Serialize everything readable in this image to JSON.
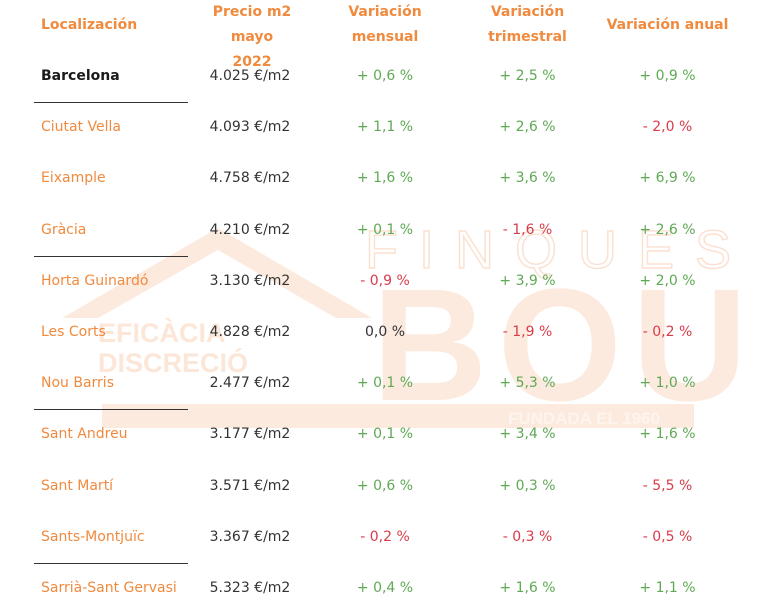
{
  "watermark": {
    "brand_top": "FINQUES",
    "brand_main": "BOU",
    "tagline_1": "EFICÀCIA",
    "tagline_2": "DISCRECIÓ",
    "founded": "FUNDADA EL 1960"
  },
  "table": {
    "headers": {
      "location": "Localización",
      "price_line1": "Precio m2 mayo",
      "price_line2": "2022",
      "monthly_line1": "Variación",
      "monthly_line2": "mensual",
      "quarterly_line1": "Variación",
      "quarterly_line2": "trimestral",
      "annual": "Variación anual"
    },
    "rows": [
      {
        "location": "Barcelona",
        "price": "4.025 €/m2",
        "monthly": "+ 0,6 %",
        "quarterly": "+ 2,5 %",
        "annual": "+ 0,9 %"
      },
      {
        "location": "Ciutat Vella",
        "price": "4.093 €/m2",
        "monthly": "+ 1,1 %",
        "quarterly": "+ 2,6 %",
        "annual": "- 2,0 %"
      },
      {
        "location": "Eixample",
        "price": "4.758 €/m2",
        "monthly": "+ 1,6 %",
        "quarterly": "+ 3,6 %",
        "annual": "+ 6,9 %"
      },
      {
        "location": "Gràcia",
        "price": "4.210 €/m2",
        "monthly": "+ 0,1 %",
        "quarterly": "- 1,6 %",
        "annual": "+ 2,6 %"
      },
      {
        "location": "Horta Guinardó",
        "price": "3.130 €/m2",
        "monthly": "- 0,9 %",
        "quarterly": "+ 3,9 %",
        "annual": "+ 2,0 %"
      },
      {
        "location": "Les Corts",
        "price": "4.828 €/m2",
        "monthly": "0,0 %",
        "quarterly": "- 1,9 %",
        "annual": "- 0,2 %"
      },
      {
        "location": "Nou Barris",
        "price": "2.477 €/m2",
        "monthly": "+ 0,1 %",
        "quarterly": "+ 5,3 %",
        "annual": "+ 1,0 %"
      },
      {
        "location": "Sant Andreu",
        "price": "3.177 €/m2",
        "monthly": "+ 0,1 %",
        "quarterly": "+ 3,4 %",
        "annual": "+ 1,6 %"
      },
      {
        "location": "Sant Martí",
        "price": "3.571 €/m2",
        "monthly": "+ 0,6 %",
        "quarterly": "+ 0,3 %",
        "annual": "- 5,5 %"
      },
      {
        "location": "Sants-Montjuïc",
        "price": "3.367 €/m2",
        "monthly": "- 0,2 %",
        "quarterly": "- 0,3 %",
        "annual": "- 0,5 %"
      },
      {
        "location": "Sarrià-Sant Gervasi",
        "price": "5.323 €/m2",
        "monthly": "+ 0,4 %",
        "quarterly": "+ 1,6 %",
        "annual": "+ 1,1 %"
      }
    ]
  },
  "colors": {
    "accent": "#f08a3e",
    "positive": "#5fa955",
    "negative": "#d83c4b",
    "neutral": "#333333",
    "watermark": "#fde9dc"
  }
}
